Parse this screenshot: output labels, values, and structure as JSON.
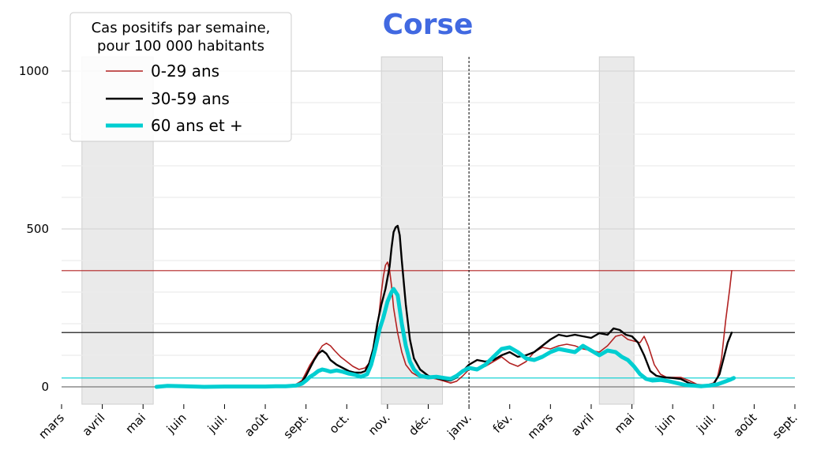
{
  "chart_data": {
    "type": "line",
    "title": "Corse",
    "legend": {
      "title_lines": [
        "Cas positifs par semaine,",
        "pour 100 000 habitants"
      ],
      "placement": "top-left"
    },
    "x_ticks": [
      "mars",
      "avril",
      "mai",
      "juin",
      "juil.",
      "août",
      "sept.",
      "oct.",
      "nov.",
      "déc.",
      "janv.",
      "fév.",
      "mars",
      "avril",
      "mai",
      "juin",
      "juil.",
      "août",
      "sept."
    ],
    "y_ticks": [
      0,
      500,
      1000
    ],
    "ylim": [
      -55,
      1045
    ],
    "grid": true,
    "year_divider_month": 10,
    "shaded_periods": [
      [
        0.5,
        2.25
      ],
      [
        7.85,
        9.35
      ],
      [
        13.2,
        14.05
      ]
    ],
    "series": [
      {
        "name": "0-29 ans",
        "color": "#b22222",
        "current_value": 368,
        "points": [
          [
            2.33,
            0
          ],
          [
            2.6,
            2
          ],
          [
            3,
            1
          ],
          [
            3.5,
            0
          ],
          [
            4,
            1
          ],
          [
            4.5,
            2
          ],
          [
            5,
            2
          ],
          [
            5.25,
            4
          ],
          [
            5.5,
            5
          ],
          [
            5.75,
            8
          ],
          [
            5.9,
            20
          ],
          [
            6.0,
            45
          ],
          [
            6.1,
            70
          ],
          [
            6.2,
            90
          ],
          [
            6.3,
            110
          ],
          [
            6.4,
            130
          ],
          [
            6.5,
            138
          ],
          [
            6.6,
            130
          ],
          [
            6.7,
            115
          ],
          [
            6.85,
            95
          ],
          [
            7.0,
            80
          ],
          [
            7.15,
            65
          ],
          [
            7.3,
            55
          ],
          [
            7.45,
            60
          ],
          [
            7.55,
            75
          ],
          [
            7.65,
            100
          ],
          [
            7.7,
            140
          ],
          [
            7.75,
            190
          ],
          [
            7.8,
            240
          ],
          [
            7.85,
            300
          ],
          [
            7.9,
            350
          ],
          [
            7.95,
            385
          ],
          [
            8.0,
            395
          ],
          [
            8.05,
            370
          ],
          [
            8.1,
            320
          ],
          [
            8.15,
            250
          ],
          [
            8.25,
            170
          ],
          [
            8.35,
            110
          ],
          [
            8.45,
            70
          ],
          [
            8.6,
            45
          ],
          [
            8.8,
            30
          ],
          [
            9.0,
            30
          ],
          [
            9.2,
            25
          ],
          [
            9.4,
            18
          ],
          [
            9.55,
            12
          ],
          [
            9.7,
            18
          ],
          [
            9.85,
            35
          ],
          [
            10.0,
            55
          ],
          [
            10.2,
            60
          ],
          [
            10.4,
            65
          ],
          [
            10.6,
            80
          ],
          [
            10.8,
            95
          ],
          [
            11.0,
            75
          ],
          [
            11.2,
            65
          ],
          [
            11.4,
            80
          ],
          [
            11.6,
            110
          ],
          [
            11.8,
            125
          ],
          [
            12.0,
            120
          ],
          [
            12.2,
            130
          ],
          [
            12.4,
            135
          ],
          [
            12.6,
            130
          ],
          [
            12.8,
            120
          ],
          [
            13.0,
            115
          ],
          [
            13.2,
            110
          ],
          [
            13.4,
            130
          ],
          [
            13.6,
            160
          ],
          [
            13.75,
            165
          ],
          [
            13.9,
            150
          ],
          [
            14.05,
            145
          ],
          [
            14.2,
            140
          ],
          [
            14.3,
            160
          ],
          [
            14.4,
            130
          ],
          [
            14.55,
            70
          ],
          [
            14.7,
            40
          ],
          [
            14.85,
            30
          ],
          [
            15.0,
            30
          ],
          [
            15.2,
            30
          ],
          [
            15.4,
            20
          ],
          [
            15.6,
            8
          ],
          [
            15.8,
            5
          ],
          [
            16.0,
            12
          ],
          [
            16.1,
            30
          ],
          [
            16.2,
            90
          ],
          [
            16.3,
            210
          ],
          [
            16.4,
            310
          ],
          [
            16.45,
            368
          ]
        ]
      },
      {
        "name": "30-59 ans",
        "color": "#000000",
        "current_value": 172,
        "points": [
          [
            2.33,
            0
          ],
          [
            2.6,
            2
          ],
          [
            3,
            1
          ],
          [
            3.5,
            0
          ],
          [
            4,
            1
          ],
          [
            4.5,
            2
          ],
          [
            5,
            2
          ],
          [
            5.25,
            3
          ],
          [
            5.5,
            3
          ],
          [
            5.75,
            5
          ],
          [
            5.9,
            15
          ],
          [
            6.0,
            35
          ],
          [
            6.1,
            60
          ],
          [
            6.2,
            85
          ],
          [
            6.3,
            105
          ],
          [
            6.4,
            115
          ],
          [
            6.5,
            105
          ],
          [
            6.6,
            85
          ],
          [
            6.75,
            70
          ],
          [
            6.9,
            60
          ],
          [
            7.05,
            50
          ],
          [
            7.2,
            45
          ],
          [
            7.35,
            45
          ],
          [
            7.45,
            50
          ],
          [
            7.55,
            75
          ],
          [
            7.65,
            120
          ],
          [
            7.75,
            200
          ],
          [
            7.85,
            260
          ],
          [
            7.95,
            310
          ],
          [
            8.05,
            380
          ],
          [
            8.1,
            440
          ],
          [
            8.15,
            490
          ],
          [
            8.2,
            505
          ],
          [
            8.25,
            510
          ],
          [
            8.3,
            480
          ],
          [
            8.35,
            400
          ],
          [
            8.45,
            260
          ],
          [
            8.55,
            150
          ],
          [
            8.65,
            90
          ],
          [
            8.8,
            55
          ],
          [
            9.0,
            35
          ],
          [
            9.2,
            28
          ],
          [
            9.4,
            22
          ],
          [
            9.55,
            20
          ],
          [
            9.7,
            30
          ],
          [
            9.85,
            50
          ],
          [
            10.0,
            70
          ],
          [
            10.2,
            85
          ],
          [
            10.4,
            80
          ],
          [
            10.6,
            85
          ],
          [
            10.8,
            100
          ],
          [
            11.0,
            110
          ],
          [
            11.2,
            95
          ],
          [
            11.4,
            100
          ],
          [
            11.6,
            110
          ],
          [
            11.8,
            130
          ],
          [
            12.0,
            150
          ],
          [
            12.2,
            165
          ],
          [
            12.4,
            160
          ],
          [
            12.6,
            165
          ],
          [
            12.8,
            160
          ],
          [
            13.0,
            155
          ],
          [
            13.2,
            170
          ],
          [
            13.4,
            165
          ],
          [
            13.55,
            185
          ],
          [
            13.7,
            180
          ],
          [
            13.85,
            165
          ],
          [
            14.0,
            160
          ],
          [
            14.15,
            140
          ],
          [
            14.3,
            100
          ],
          [
            14.45,
            50
          ],
          [
            14.6,
            35
          ],
          [
            14.8,
            30
          ],
          [
            15.0,
            28
          ],
          [
            15.2,
            25
          ],
          [
            15.4,
            12
          ],
          [
            15.6,
            5
          ],
          [
            15.8,
            3
          ],
          [
            16.0,
            8
          ],
          [
            16.15,
            40
          ],
          [
            16.25,
            90
          ],
          [
            16.35,
            140
          ],
          [
            16.45,
            172
          ]
        ]
      },
      {
        "name": "60 ans et +",
        "color": "#00ced1",
        "current_value": 28,
        "points": [
          [
            2.33,
            0
          ],
          [
            2.6,
            3
          ],
          [
            3,
            2
          ],
          [
            3.5,
            0
          ],
          [
            4,
            1
          ],
          [
            4.5,
            1
          ],
          [
            5,
            1
          ],
          [
            5.25,
            2
          ],
          [
            5.5,
            2
          ],
          [
            5.75,
            4
          ],
          [
            5.9,
            10
          ],
          [
            6.0,
            20
          ],
          [
            6.1,
            32
          ],
          [
            6.2,
            40
          ],
          [
            6.3,
            50
          ],
          [
            6.4,
            55
          ],
          [
            6.5,
            52
          ],
          [
            6.6,
            48
          ],
          [
            6.75,
            52
          ],
          [
            6.9,
            48
          ],
          [
            7.05,
            42
          ],
          [
            7.2,
            38
          ],
          [
            7.35,
            32
          ],
          [
            7.5,
            40
          ],
          [
            7.6,
            70
          ],
          [
            7.7,
            120
          ],
          [
            7.8,
            180
          ],
          [
            7.9,
            220
          ],
          [
            8.0,
            270
          ],
          [
            8.1,
            300
          ],
          [
            8.15,
            310
          ],
          [
            8.25,
            290
          ],
          [
            8.35,
            200
          ],
          [
            8.45,
            130
          ],
          [
            8.55,
            80
          ],
          [
            8.65,
            55
          ],
          [
            8.8,
            35
          ],
          [
            9.0,
            30
          ],
          [
            9.2,
            32
          ],
          [
            9.4,
            28
          ],
          [
            9.55,
            25
          ],
          [
            9.7,
            35
          ],
          [
            9.85,
            50
          ],
          [
            10.0,
            60
          ],
          [
            10.2,
            55
          ],
          [
            10.4,
            70
          ],
          [
            10.6,
            95
          ],
          [
            10.8,
            120
          ],
          [
            11.0,
            125
          ],
          [
            11.2,
            110
          ],
          [
            11.4,
            90
          ],
          [
            11.6,
            85
          ],
          [
            11.8,
            95
          ],
          [
            12.0,
            110
          ],
          [
            12.2,
            120
          ],
          [
            12.4,
            115
          ],
          [
            12.6,
            110
          ],
          [
            12.8,
            130
          ],
          [
            13.0,
            115
          ],
          [
            13.2,
            100
          ],
          [
            13.4,
            115
          ],
          [
            13.6,
            110
          ],
          [
            13.75,
            95
          ],
          [
            13.9,
            85
          ],
          [
            14.05,
            65
          ],
          [
            14.2,
            40
          ],
          [
            14.35,
            25
          ],
          [
            14.5,
            20
          ],
          [
            14.7,
            22
          ],
          [
            14.9,
            18
          ],
          [
            15.1,
            12
          ],
          [
            15.3,
            6
          ],
          [
            15.5,
            4
          ],
          [
            15.7,
            2
          ],
          [
            15.9,
            4
          ],
          [
            16.1,
            8
          ],
          [
            16.25,
            15
          ],
          [
            16.4,
            22
          ],
          [
            16.5,
            28
          ]
        ]
      }
    ]
  }
}
